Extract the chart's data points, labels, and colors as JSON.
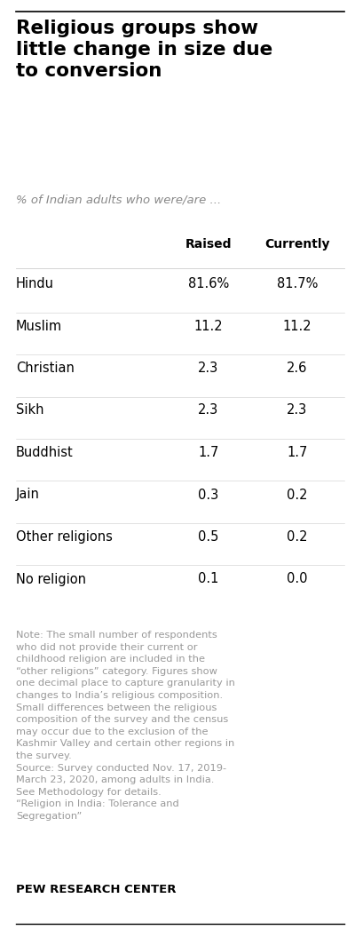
{
  "title": "Religious groups show\nlittle change in size due\nto conversion",
  "subtitle": "% of Indian adults who were/are ...",
  "col_header_raised": "Raised",
  "col_header_currently": "Currently",
  "religions": [
    "Hindu",
    "Muslim",
    "Christian",
    "Sikh",
    "Buddhist",
    "Jain",
    "Other religions",
    "No religion"
  ],
  "raised": [
    "81.6%",
    "11.2",
    "2.3",
    "2.3",
    "1.7",
    "0.3",
    "0.5",
    "0.1"
  ],
  "currently": [
    "81.7%",
    "11.2",
    "2.6",
    "2.3",
    "1.7",
    "0.2",
    "0.2",
    "0.0"
  ],
  "note_text": "Note: The small number of respondents who did not provide their current or childhood religion are included in the “other religions” category. Figures show one decimal place to capture granularity in changes to India’s religious composition. Small differences between the religious composition of the survey and the census may occur due to the exclusion of the Kashmir Valley and certain other regions in the survey.\nSource: Survey conducted Nov. 17, 2019-March 23, 2020, among adults in India. See Methodology for details.\n“Religion in India: Tolerance and Segregation”",
  "footer": "PEW RESEARCH CENTER",
  "bg_color": "#ffffff",
  "title_color": "#000000",
  "subtitle_color": "#888888",
  "header_color": "#000000",
  "religion_color": "#000000",
  "value_color": "#000000",
  "note_color": "#999999",
  "footer_color": "#000000",
  "top_line_color": "#000000",
  "bottom_line_color": "#000000",
  "sep_color": "#cccccc"
}
